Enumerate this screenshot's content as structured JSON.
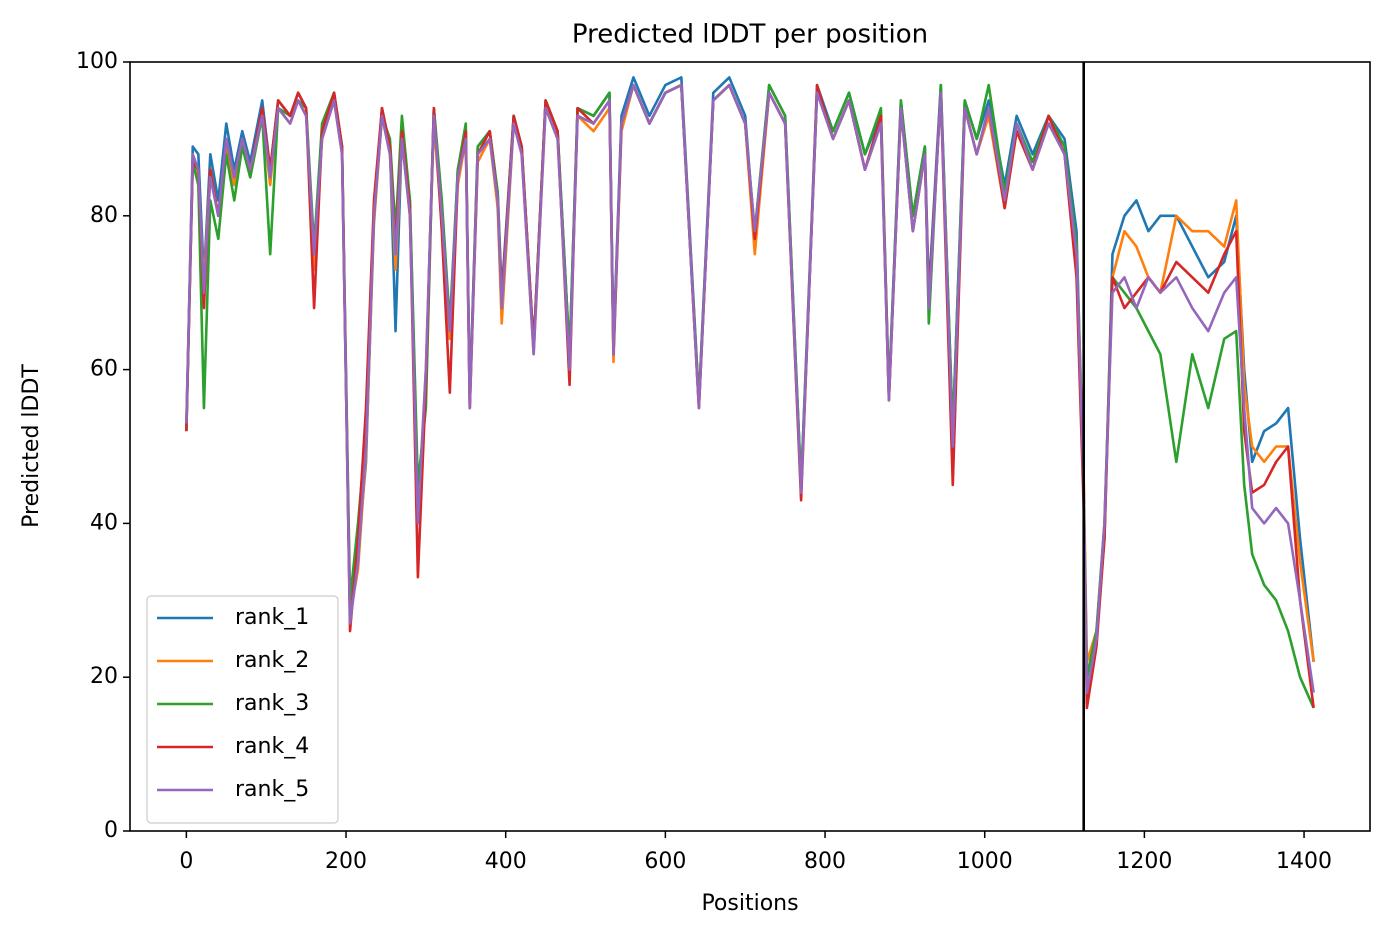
{
  "chart_data": {
    "type": "line",
    "title": "Predicted lDDT per position",
    "xlabel": "Positions",
    "ylabel": "Predicted lDDT",
    "xlim": [
      -70.6,
      1482.6
    ],
    "ylim": [
      0,
      100
    ],
    "xticks": [
      0,
      200,
      400,
      600,
      800,
      1000,
      1200,
      1400
    ],
    "yticks": [
      0,
      20,
      40,
      60,
      80,
      100
    ],
    "grid": false,
    "legend": "lower left",
    "vlines": [
      1124
    ],
    "vline_color": "#000000",
    "x": [
      0,
      8,
      15,
      22,
      30,
      40,
      50,
      60,
      70,
      80,
      95,
      105,
      115,
      130,
      140,
      150,
      160,
      170,
      185,
      195,
      205,
      215,
      225,
      235,
      245,
      255,
      262,
      270,
      280,
      290,
      300,
      310,
      320,
      330,
      340,
      350,
      355,
      365,
      380,
      390,
      395,
      410,
      420,
      435,
      450,
      465,
      480,
      490,
      510,
      530,
      535,
      545,
      560,
      580,
      600,
      620,
      642,
      660,
      680,
      700,
      712,
      730,
      750,
      770,
      790,
      810,
      830,
      850,
      870,
      880,
      895,
      910,
      925,
      930,
      945,
      960,
      975,
      990,
      1005,
      1025,
      1040,
      1060,
      1080,
      1100,
      1115,
      1124,
      1128,
      1140,
      1150,
      1160,
      1175,
      1190,
      1205,
      1220,
      1240,
      1260,
      1280,
      1300,
      1315,
      1325,
      1335,
      1350,
      1365,
      1380,
      1395,
      1412
    ],
    "series": [
      {
        "name": "rank_1",
        "color": "#1f77b4",
        "values": [
          52,
          89,
          88,
          72,
          88,
          82,
          92,
          86,
          91,
          87,
          95,
          86,
          95,
          93,
          96,
          94,
          74,
          91,
          96,
          89,
          28,
          36,
          48,
          80,
          94,
          89,
          65,
          91,
          82,
          42,
          58,
          94,
          81,
          64,
          86,
          91,
          56,
          89,
          91,
          83,
          70,
          93,
          89,
          63,
          95,
          91,
          62,
          94,
          93,
          96,
          63,
          93,
          98,
          93,
          97,
          98,
          56,
          96,
          98,
          93,
          77,
          97,
          93,
          45,
          97,
          91,
          96,
          88,
          93,
          57,
          95,
          80,
          89,
          70,
          97,
          52,
          95,
          90,
          95,
          84,
          93,
          88,
          93,
          90,
          78,
          44,
          20,
          26,
          38,
          75,
          80,
          82,
          78,
          80,
          80,
          76,
          72,
          74,
          80,
          60,
          48,
          52,
          53,
          55,
          38,
          22
        ]
      },
      {
        "name": "rank_2",
        "color": "#ff7f0e",
        "values": [
          53,
          87,
          85,
          71,
          86,
          80,
          89,
          84,
          89,
          85,
          93,
          84,
          94,
          92,
          95,
          93,
          73,
          90,
          95,
          88,
          28,
          34,
          49,
          79,
          93,
          88,
          73,
          90,
          80,
          41,
          60,
          92,
          79,
          64,
          84,
          90,
          55,
          87,
          90,
          81,
          66,
          92,
          88,
          62,
          94,
          90,
          61,
          93,
          91,
          94,
          61,
          91,
          97,
          92,
          96,
          97,
          55,
          95,
          97,
          92,
          75,
          96,
          92,
          44,
          96,
          90,
          95,
          86,
          92,
          56,
          94,
          78,
          88,
          68,
          96,
          50,
          94,
          88,
          93,
          81,
          91,
          86,
          92,
          88,
          76,
          46,
          22,
          26,
          40,
          72,
          78,
          76,
          72,
          70,
          80,
          78,
          78,
          76,
          82,
          58,
          50,
          48,
          50,
          50,
          35,
          22
        ]
      },
      {
        "name": "rank_3",
        "color": "#2ca02c",
        "values": [
          52,
          87,
          84,
          55,
          82,
          77,
          88,
          82,
          89,
          85,
          93,
          75,
          94,
          93,
          95,
          94,
          76,
          92,
          96,
          89,
          30,
          40,
          52,
          80,
          93,
          90,
          78,
          93,
          82,
          45,
          55,
          94,
          82,
          66,
          86,
          92,
          56,
          89,
          91,
          83,
          69,
          93,
          89,
          63,
          95,
          91,
          62,
          94,
          93,
          96,
          62,
          92,
          97,
          92,
          96,
          97,
          56,
          95,
          97,
          92,
          78,
          97,
          93,
          45,
          96,
          91,
          96,
          88,
          94,
          57,
          95,
          80,
          89,
          66,
          97,
          52,
          95,
          90,
          97,
          83,
          92,
          87,
          93,
          89,
          76,
          44,
          20,
          26,
          40,
          72,
          70,
          68,
          65,
          62,
          48,
          62,
          55,
          64,
          65,
          45,
          36,
          32,
          30,
          26,
          20,
          16
        ]
      },
      {
        "name": "rank_4",
        "color": "#d62728",
        "values": [
          52,
          87,
          86,
          68,
          86,
          80,
          90,
          85,
          90,
          86,
          94,
          86,
          95,
          93,
          96,
          94,
          68,
          91,
          96,
          89,
          26,
          38,
          55,
          82,
          94,
          89,
          76,
          91,
          81,
          33,
          58,
          94,
          78,
          57,
          85,
          91,
          55,
          88,
          91,
          82,
          69,
          93,
          89,
          63,
          95,
          91,
          58,
          94,
          92,
          95,
          62,
          92,
          97,
          92,
          96,
          97,
          55,
          95,
          97,
          92,
          77,
          96,
          92,
          43,
          97,
          90,
          95,
          86,
          93,
          56,
          94,
          78,
          88,
          69,
          96,
          45,
          94,
          88,
          94,
          81,
          91,
          86,
          93,
          88,
          72,
          42,
          16,
          24,
          38,
          72,
          68,
          70,
          72,
          70,
          74,
          72,
          70,
          75,
          78,
          52,
          44,
          45,
          48,
          50,
          30,
          16
        ]
      },
      {
        "name": "rank_5",
        "color": "#9467bd",
        "values": [
          53,
          88,
          86,
          70,
          85,
          80,
          90,
          85,
          90,
          86,
          93,
          85,
          94,
          92,
          95,
          93,
          75,
          90,
          95,
          88,
          27,
          35,
          50,
          80,
          93,
          88,
          75,
          90,
          80,
          40,
          60,
          93,
          80,
          65,
          85,
          90,
          55,
          88,
          90,
          82,
          68,
          92,
          88,
          62,
          94,
          90,
          60,
          93,
          92,
          95,
          62,
          92,
          97,
          92,
          96,
          97,
          55,
          95,
          97,
          92,
          78,
          96,
          92,
          44,
          96,
          90,
          95,
          86,
          92,
          56,
          94,
          78,
          88,
          68,
          96,
          50,
          94,
          88,
          94,
          82,
          92,
          86,
          92,
          88,
          75,
          45,
          18,
          25,
          40,
          70,
          72,
          68,
          72,
          70,
          72,
          68,
          65,
          70,
          72,
          55,
          42,
          40,
          42,
          40,
          30,
          18
        ]
      }
    ]
  }
}
